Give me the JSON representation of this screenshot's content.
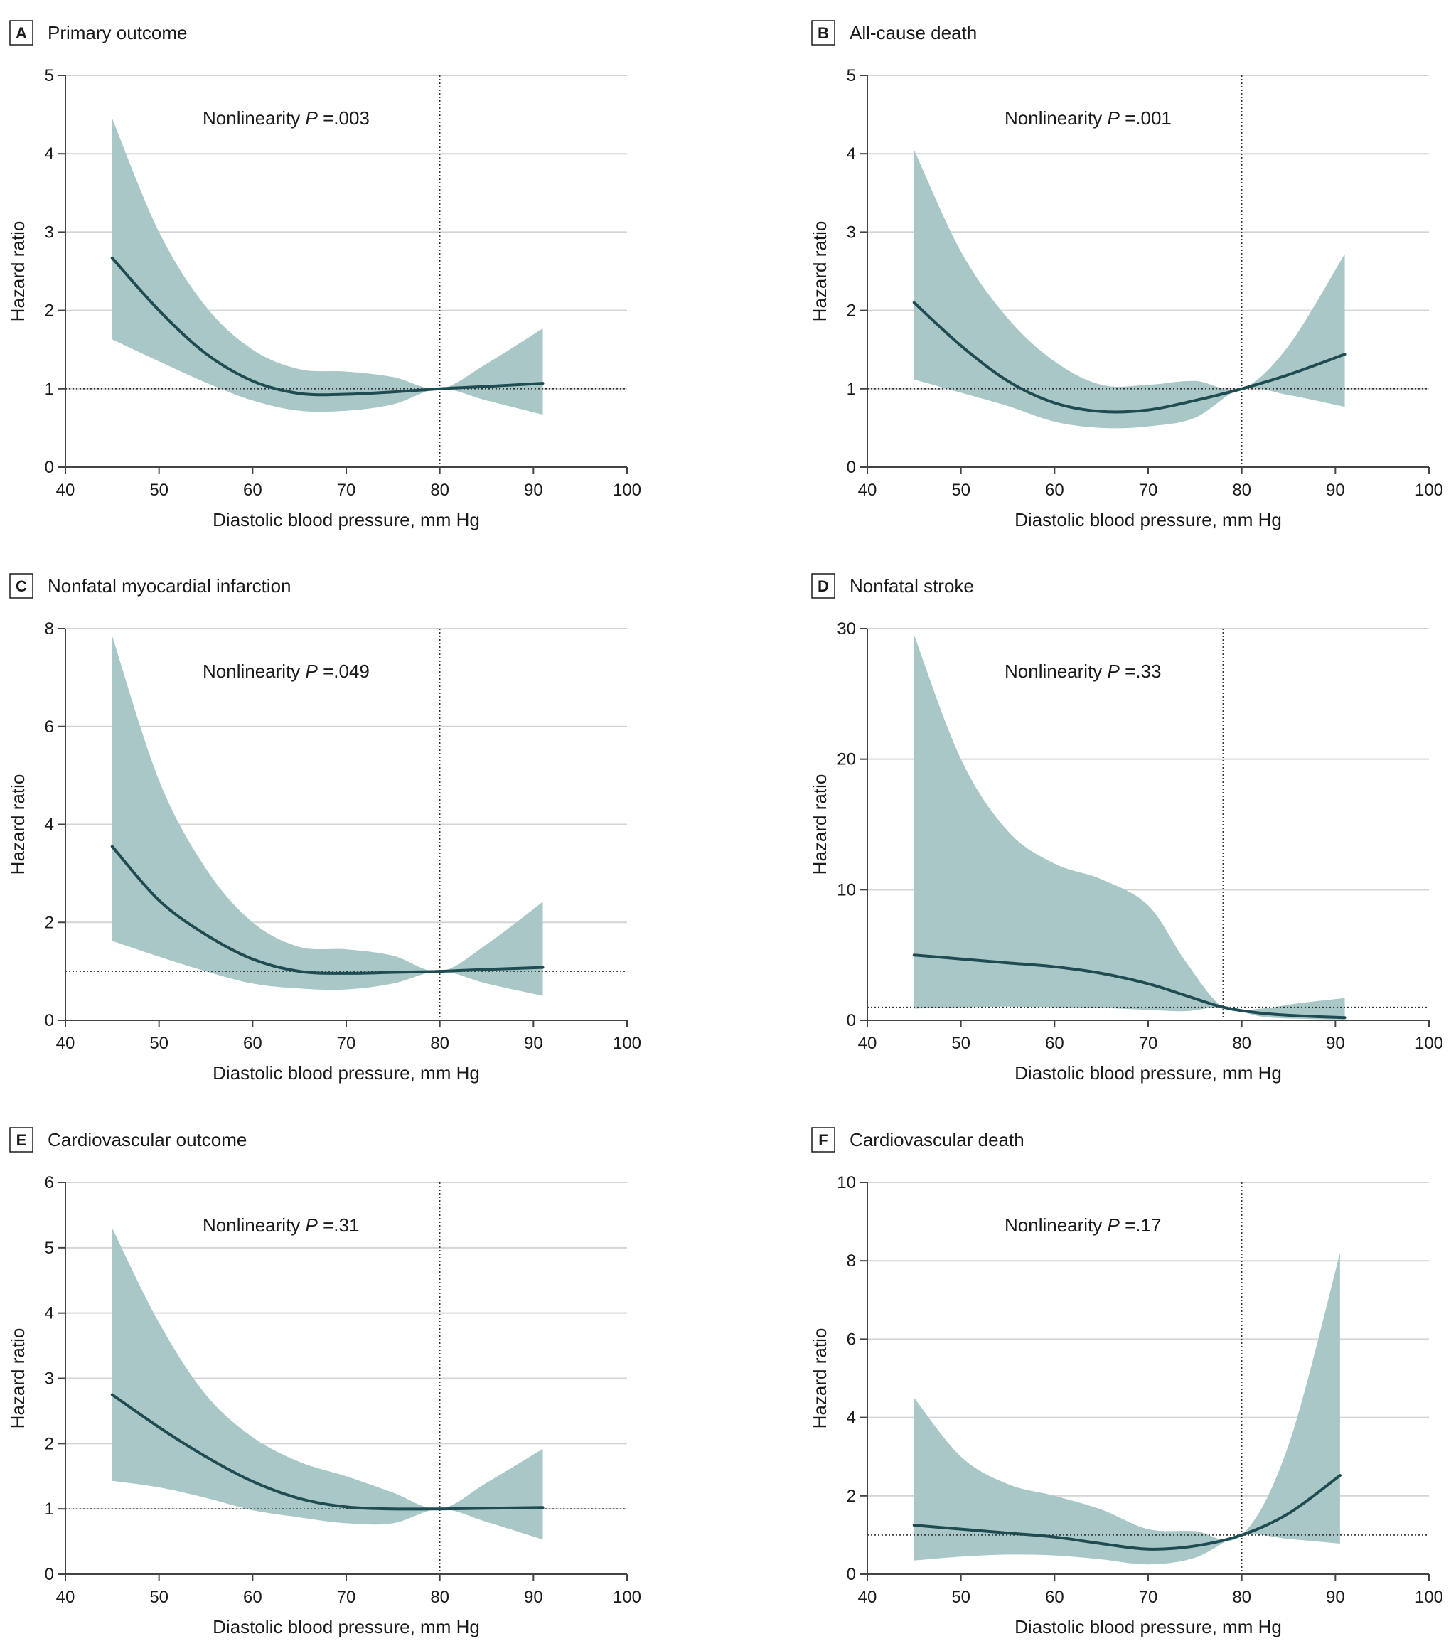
{
  "figure": {
    "xlabel": "Diastolic blood pressure, mm Hg",
    "ylabel": "Hazard ratio",
    "colors": {
      "band": "#a9c7c6",
      "line": "#1f4c52",
      "grid": "#d4d4d4",
      "axis": "#444444"
    }
  },
  "chart_data": [
    {
      "type": "line",
      "letter": "A",
      "title": "Primary outcome",
      "annotation_prefix": "Nonlinearity ",
      "annotation_p": "P",
      "annotation_value": " =.003",
      "xlabel": "Diastolic blood pressure, mm Hg",
      "ylabel": "Hazard ratio",
      "xlim": [
        40,
        100
      ],
      "ylim": [
        0,
        5
      ],
      "xticks": [
        40,
        50,
        60,
        70,
        80,
        90,
        100
      ],
      "yticks": [
        0,
        1,
        2,
        3,
        4,
        5
      ],
      "reference_x": 80,
      "reference_y": 1,
      "x": [
        45,
        50,
        55,
        60,
        65,
        70,
        75,
        80,
        85,
        91
      ],
      "series": [
        {
          "name": "Hazard ratio",
          "values": [
            2.67,
            2.0,
            1.45,
            1.1,
            0.94,
            0.93,
            0.96,
            1.0,
            1.03,
            1.07
          ]
        },
        {
          "name": "Upper 95% CI",
          "values": [
            4.45,
            3.0,
            2.05,
            1.5,
            1.25,
            1.22,
            1.15,
            1.0,
            1.32,
            1.77
          ]
        },
        {
          "name": "Lower 95% CI",
          "values": [
            1.63,
            1.35,
            1.08,
            0.85,
            0.72,
            0.72,
            0.8,
            1.0,
            0.85,
            0.67
          ]
        }
      ]
    },
    {
      "type": "line",
      "letter": "B",
      "title": "All-cause death",
      "annotation_prefix": "Nonlinearity ",
      "annotation_p": "P",
      "annotation_value": " =.001",
      "xlabel": "Diastolic blood pressure, mm Hg",
      "ylabel": "Hazard ratio",
      "xlim": [
        40,
        100
      ],
      "ylim": [
        0,
        5
      ],
      "xticks": [
        40,
        50,
        60,
        70,
        80,
        90,
        100
      ],
      "yticks": [
        0,
        1,
        2,
        3,
        4,
        5
      ],
      "reference_x": 80,
      "reference_y": 1,
      "x": [
        45,
        50,
        55,
        60,
        65,
        70,
        75,
        80,
        85,
        91
      ],
      "series": [
        {
          "name": "Hazard ratio",
          "values": [
            2.1,
            1.55,
            1.1,
            0.82,
            0.71,
            0.73,
            0.85,
            1.0,
            1.18,
            1.44
          ]
        },
        {
          "name": "Upper 95% CI",
          "values": [
            4.05,
            2.75,
            1.9,
            1.35,
            1.05,
            1.05,
            1.1,
            1.0,
            1.55,
            2.72
          ]
        },
        {
          "name": "Lower 95% CI",
          "values": [
            1.12,
            0.95,
            0.78,
            0.58,
            0.5,
            0.52,
            0.63,
            1.0,
            0.92,
            0.77
          ]
        }
      ]
    },
    {
      "type": "line",
      "letter": "C",
      "title": "Nonfatal myocardial infarction",
      "annotation_prefix": "Nonlinearity ",
      "annotation_p": "P",
      "annotation_value": " =.049",
      "xlabel": "Diastolic blood pressure, mm Hg",
      "ylabel": "Hazard ratio",
      "xlim": [
        40,
        100
      ],
      "ylim": [
        0,
        8
      ],
      "xticks": [
        40,
        50,
        60,
        70,
        80,
        90,
        100
      ],
      "yticks": [
        0,
        2,
        4,
        6,
        8
      ],
      "reference_x": 80,
      "reference_y": 1,
      "x": [
        45,
        50,
        55,
        60,
        65,
        70,
        75,
        80,
        85,
        91
      ],
      "series": [
        {
          "name": "Hazard ratio",
          "values": [
            3.55,
            2.45,
            1.75,
            1.25,
            1.0,
            0.96,
            0.98,
            1.0,
            1.04,
            1.08
          ]
        },
        {
          "name": "Upper 95% CI",
          "values": [
            7.85,
            4.9,
            3.1,
            2.0,
            1.5,
            1.45,
            1.32,
            1.0,
            1.55,
            2.42
          ]
        },
        {
          "name": "Lower 95% CI",
          "values": [
            1.62,
            1.3,
            1.0,
            0.75,
            0.65,
            0.63,
            0.75,
            1.0,
            0.75,
            0.5
          ]
        }
      ]
    },
    {
      "type": "line",
      "letter": "D",
      "title": "Nonfatal stroke",
      "annotation_prefix": "Nonlinearity ",
      "annotation_p": "P",
      "annotation_value": " =.33",
      "xlabel": "Diastolic blood pressure, mm Hg",
      "ylabel": "Hazard ratio",
      "xlim": [
        40,
        100
      ],
      "ylim": [
        0,
        30
      ],
      "xticks": [
        40,
        50,
        60,
        70,
        80,
        90,
        100
      ],
      "yticks": [
        0,
        10,
        20,
        30
      ],
      "reference_x": 78,
      "reference_y": 1,
      "x": [
        45,
        50,
        55,
        60,
        65,
        70,
        74,
        78,
        82,
        86,
        91
      ],
      "series": [
        {
          "name": "Hazard ratio",
          "values": [
            5.0,
            4.7,
            4.4,
            4.1,
            3.6,
            2.8,
            1.9,
            1.0,
            0.55,
            0.35,
            0.2
          ]
        },
        {
          "name": "Upper 95% CI",
          "values": [
            29.5,
            20.0,
            14.5,
            12.0,
            10.8,
            8.8,
            4.5,
            1.0,
            0.9,
            1.3,
            1.7
          ]
        },
        {
          "name": "Lower 95% CI",
          "values": [
            0.9,
            1.0,
            1.05,
            1.0,
            0.95,
            0.8,
            0.7,
            1.0,
            0.3,
            0.12,
            0.05
          ]
        }
      ]
    },
    {
      "type": "line",
      "letter": "E",
      "title": "Cardiovascular outcome",
      "annotation_prefix": "Nonlinearity ",
      "annotation_p": "P",
      "annotation_value": " =.31",
      "xlabel": "Diastolic blood pressure, mm Hg",
      "ylabel": "Hazard ratio",
      "xlim": [
        40,
        100
      ],
      "ylim": [
        0,
        6
      ],
      "xticks": [
        40,
        50,
        60,
        70,
        80,
        90,
        100
      ],
      "yticks": [
        0,
        1,
        2,
        3,
        4,
        5,
        6
      ],
      "reference_x": 80,
      "reference_y": 1,
      "x": [
        45,
        50,
        55,
        60,
        65,
        70,
        75,
        80,
        85,
        91
      ],
      "series": [
        {
          "name": "Hazard ratio",
          "values": [
            2.75,
            2.25,
            1.8,
            1.42,
            1.16,
            1.03,
            1.0,
            1.0,
            1.01,
            1.02
          ]
        },
        {
          "name": "Upper 95% CI",
          "values": [
            5.3,
            3.85,
            2.75,
            2.1,
            1.72,
            1.5,
            1.25,
            1.0,
            1.4,
            1.92
          ]
        },
        {
          "name": "Lower 95% CI",
          "values": [
            1.43,
            1.33,
            1.17,
            0.98,
            0.87,
            0.78,
            0.78,
            1.0,
            0.8,
            0.53
          ]
        }
      ]
    },
    {
      "type": "line",
      "letter": "F",
      "title": "Cardiovascular death",
      "annotation_prefix": "Nonlinearity ",
      "annotation_p": "P",
      "annotation_value": " =.17",
      "xlabel": "Diastolic blood pressure, mm Hg",
      "ylabel": "Hazard ratio",
      "xlim": [
        40,
        100
      ],
      "ylim": [
        0,
        10
      ],
      "xticks": [
        40,
        50,
        60,
        70,
        80,
        90,
        100
      ],
      "yticks": [
        0,
        2,
        4,
        6,
        8,
        10
      ],
      "reference_x": 80,
      "reference_y": 1,
      "x": [
        45,
        50,
        55,
        60,
        65,
        70,
        75,
        80,
        85,
        90.5
      ],
      "series": [
        {
          "name": "Hazard ratio",
          "values": [
            1.25,
            1.15,
            1.05,
            0.95,
            0.78,
            0.64,
            0.72,
            1.0,
            1.55,
            2.52
          ]
        },
        {
          "name": "Upper 95% CI",
          "values": [
            4.5,
            3.0,
            2.3,
            2.0,
            1.65,
            1.15,
            1.1,
            1.0,
            3.3,
            8.2
          ]
        },
        {
          "name": "Lower 95% CI",
          "values": [
            0.35,
            0.45,
            0.5,
            0.48,
            0.38,
            0.25,
            0.42,
            1.0,
            0.9,
            0.78
          ]
        }
      ]
    }
  ]
}
